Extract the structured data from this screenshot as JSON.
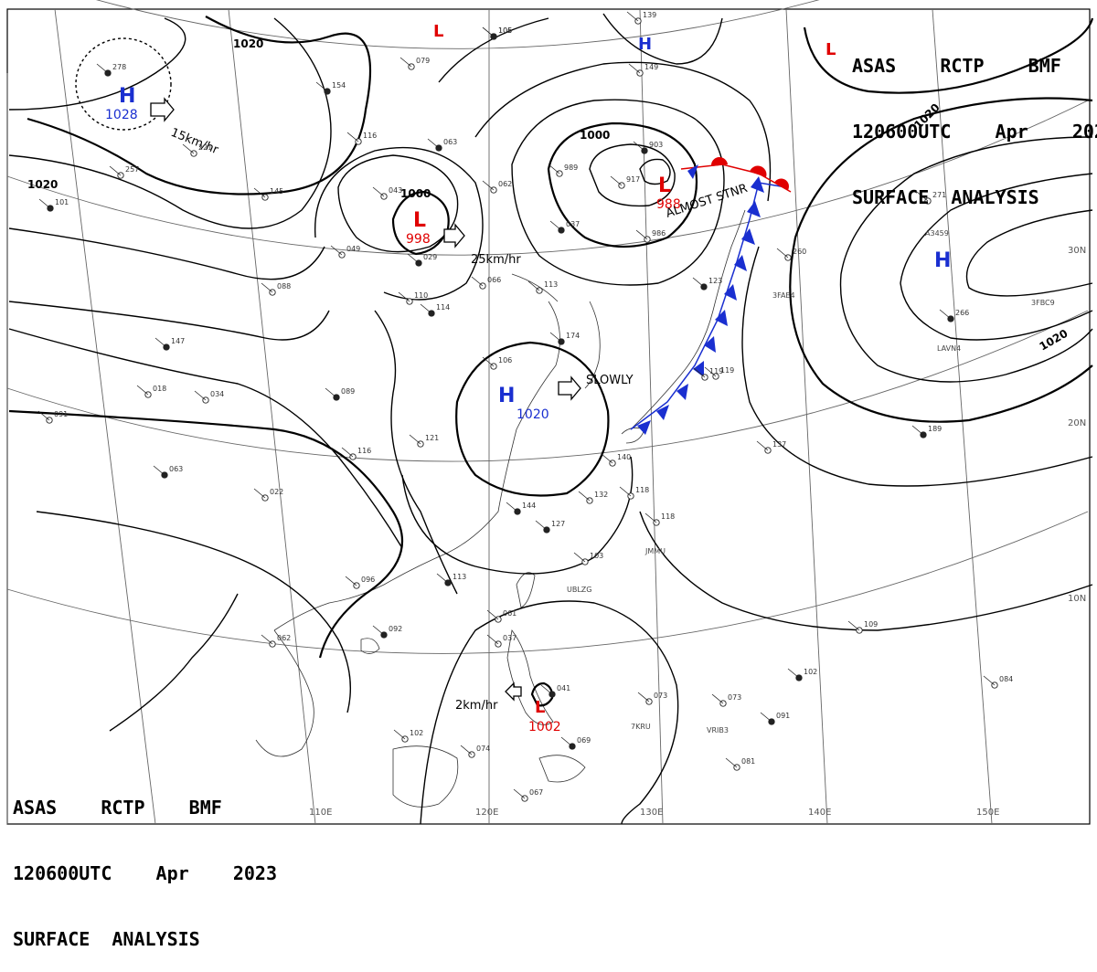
{
  "header": {
    "line1": "ASAS    RCTP    BMF",
    "line2": "120600UTC    Apr    2023",
    "line3": "SURFACE  ANALYSIS"
  },
  "colors": {
    "high": "#1a2fd0",
    "low": "#e00000",
    "isobar": "#000000",
    "land": "#333333",
    "grid": "#555555"
  },
  "latitude_labels": [
    "30N",
    "20N",
    "10N"
  ],
  "longitude_labels": [
    "110E",
    "120E",
    "130E",
    "140E",
    "150E"
  ],
  "isobar_labels": [
    "1020",
    "1020",
    "1000",
    "1000",
    "1020",
    "1020"
  ],
  "pressure_centers": [
    {
      "type": "H",
      "value": "1028"
    },
    {
      "type": "H",
      "value": "1020"
    },
    {
      "type": "H",
      "value": ""
    },
    {
      "type": "H",
      "value": ""
    },
    {
      "type": "L",
      "value": "998"
    },
    {
      "type": "L",
      "value": "988"
    },
    {
      "type": "L",
      "value": "1002"
    },
    {
      "type": "L",
      "value": ""
    }
  ],
  "motions": [
    {
      "label": "15km/hr",
      "direction": "east"
    },
    {
      "label": "25km/hr",
      "direction": "east"
    },
    {
      "label": "SLOWLY",
      "direction": "east"
    },
    {
      "label": "2km/hr",
      "direction": "west"
    },
    {
      "label": "ALMOST STNR",
      "direction": "none"
    }
  ],
  "stations": [
    {
      "num": "278"
    },
    {
      "num": "257"
    },
    {
      "num": "221"
    },
    {
      "num": "101"
    },
    {
      "num": "105"
    },
    {
      "num": "145"
    },
    {
      "num": "154"
    },
    {
      "num": "116"
    },
    {
      "num": "079"
    },
    {
      "num": "063"
    },
    {
      "num": "043"
    },
    {
      "num": "062"
    },
    {
      "num": "106"
    },
    {
      "num": "139"
    },
    {
      "num": "149"
    },
    {
      "num": "903"
    },
    {
      "num": "989"
    },
    {
      "num": "917"
    },
    {
      "num": "037"
    },
    {
      "num": "986"
    },
    {
      "num": "049"
    },
    {
      "num": "029"
    },
    {
      "num": "066"
    },
    {
      "num": "113"
    },
    {
      "num": "114"
    },
    {
      "num": "110"
    },
    {
      "num": "088"
    },
    {
      "num": "147"
    },
    {
      "num": "018"
    },
    {
      "num": "034"
    },
    {
      "num": "089"
    },
    {
      "num": "091"
    },
    {
      "num": "106"
    },
    {
      "num": "174"
    },
    {
      "num": "121"
    },
    {
      "num": "116"
    },
    {
      "num": "063"
    },
    {
      "num": "022"
    },
    {
      "num": "119"
    },
    {
      "num": "144"
    },
    {
      "num": "132"
    },
    {
      "num": "118"
    },
    {
      "num": "127"
    },
    {
      "num": "118"
    },
    {
      "num": "103"
    },
    {
      "num": "113"
    },
    {
      "num": "096"
    },
    {
      "num": "062"
    },
    {
      "num": "092"
    },
    {
      "num": "061"
    },
    {
      "num": "037"
    },
    {
      "num": "041"
    },
    {
      "num": "073"
    },
    {
      "num": "073"
    },
    {
      "num": "102"
    },
    {
      "num": "102"
    },
    {
      "num": "074"
    },
    {
      "num": "069"
    },
    {
      "num": "067"
    },
    {
      "num": "081"
    },
    {
      "num": "091"
    },
    {
      "num": "084"
    },
    {
      "num": "109"
    },
    {
      "num": "189"
    },
    {
      "num": "137"
    },
    {
      "num": "140"
    },
    {
      "num": "266"
    },
    {
      "num": "271"
    },
    {
      "num": "260"
    },
    {
      "num": "123"
    },
    {
      "num": "119"
    }
  ],
  "station_ids": [
    "A3459",
    "3FAE4",
    "3FBC9",
    "LAVN4",
    "JMMU",
    "UBLZG",
    "7KRU",
    "VRIB3"
  ]
}
